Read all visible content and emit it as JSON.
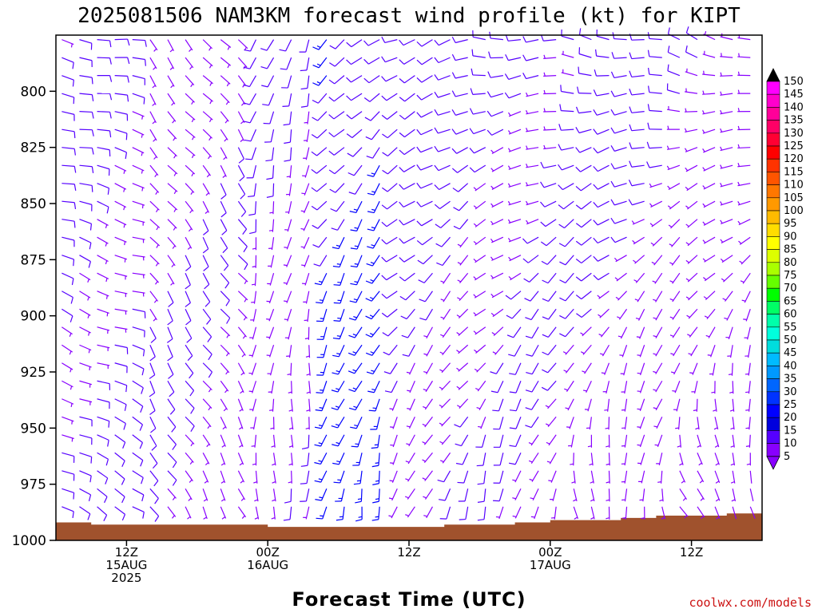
{
  "page": {
    "title": "2025081506 NAM3KM forecast wind profile (kt) for KIPT",
    "xlabel": "Forecast Time (UTC)",
    "credit": "coolwx.com/models"
  },
  "chart_data": {
    "type": "wind_barbs",
    "title": "2025081506 NAM3KM forecast wind profile (kt) for KIPT",
    "xlabel": "Forecast Time (UTC)",
    "ylabel": "",
    "y_axis": {
      "reversed": true,
      "range": [
        775,
        1000
      ],
      "ticks": [
        "800",
        "825",
        "850",
        "875",
        "900",
        "925",
        "950",
        "975",
        "1000"
      ]
    },
    "x_axis": {
      "range_hours": [
        0,
        60
      ],
      "ticks": [
        {
          "hour": 6,
          "line1": "12Z",
          "line2": "15AUG",
          "line3": "2025"
        },
        {
          "hour": 18,
          "line1": "00Z",
          "line2": "16AUG",
          "line3": ""
        },
        {
          "hour": 30,
          "line1": "12Z",
          "line2": "",
          "line3": ""
        },
        {
          "hour": 42,
          "line1": "00Z",
          "line2": "17AUG",
          "line3": ""
        },
        {
          "hour": 54,
          "line1": "12Z",
          "line2": "",
          "line3": ""
        }
      ]
    },
    "grid": false,
    "legend_placement": "right",
    "colorbar": {
      "labels": [
        "150",
        "145",
        "140",
        "135",
        "130",
        "125",
        "120",
        "115",
        "110",
        "105",
        "100",
        "95",
        "90",
        "85",
        "80",
        "75",
        "70",
        "65",
        "60",
        "55",
        "50",
        "45",
        "40",
        "35",
        "30",
        "25",
        "20",
        "15",
        "10",
        "5"
      ],
      "colors": [
        "#ff00ff",
        "#ff00cc",
        "#ff0099",
        "#ff0066",
        "#ff0033",
        "#ff0000",
        "#ff3300",
        "#ff5500",
        "#ff7700",
        "#ff9900",
        "#ffbb00",
        "#ffdd00",
        "#ffff00",
        "#ddff00",
        "#aaff00",
        "#66ff00",
        "#00ff00",
        "#00ff66",
        "#00ffaa",
        "#00ffdd",
        "#00dddd",
        "#00bbff",
        "#0099ff",
        "#0066ff",
        "#0033ff",
        "#0000ff",
        "#0000dd",
        "#5500ff",
        "#8800ff"
      ],
      "top_color": "#000000",
      "bottom_color": "#8800ff"
    },
    "terrain_color": "#a0522d",
    "surface_pressure_series": [
      {
        "hour": 0,
        "p": 992
      },
      {
        "hour": 3,
        "p": 993
      },
      {
        "hour": 6,
        "p": 993
      },
      {
        "hour": 9,
        "p": 993
      },
      {
        "hour": 12,
        "p": 993
      },
      {
        "hour": 15,
        "p": 993
      },
      {
        "hour": 18,
        "p": 994
      },
      {
        "hour": 21,
        "p": 994
      },
      {
        "hour": 24,
        "p": 994
      },
      {
        "hour": 27,
        "p": 994
      },
      {
        "hour": 30,
        "p": 994
      },
      {
        "hour": 33,
        "p": 993
      },
      {
        "hour": 36,
        "p": 993
      },
      {
        "hour": 39,
        "p": 992
      },
      {
        "hour": 42,
        "p": 991
      },
      {
        "hour": 45,
        "p": 991
      },
      {
        "hour": 48,
        "p": 990
      },
      {
        "hour": 51,
        "p": 989
      },
      {
        "hour": 54,
        "p": 989
      },
      {
        "hour": 57,
        "p": 988
      },
      {
        "hour": 60,
        "p": 987
      }
    ],
    "wind_regimes": [
      {
        "hours": [
          0,
          8
        ],
        "low": {
          "dir": 120,
          "spd": 12
        },
        "high": {
          "dir": 100,
          "spd": 10
        }
      },
      {
        "hours": [
          8,
          16
        ],
        "low": {
          "dir": 150,
          "spd": 10
        },
        "high": {
          "dir": 140,
          "spd": 8
        }
      },
      {
        "hours": [
          16,
          22
        ],
        "low": {
          "dir": 180,
          "spd": 8
        },
        "high": {
          "dir": 200,
          "spd": 10
        }
      },
      {
        "hours": [
          22,
          28
        ],
        "low": {
          "dir": 190,
          "spd": 18
        },
        "high": {
          "dir": 230,
          "spd": 15
        }
      },
      {
        "hours": [
          28,
          36
        ],
        "low": {
          "dir": 200,
          "spd": 10
        },
        "high": {
          "dir": 250,
          "spd": 12
        }
      },
      {
        "hours": [
          36,
          44
        ],
        "low": {
          "dir": 190,
          "spd": 8
        },
        "high": {
          "dir": 270,
          "spd": 12
        }
      },
      {
        "hours": [
          44,
          52
        ],
        "low": {
          "dir": 170,
          "spd": 7
        },
        "high": {
          "dir": 280,
          "spd": 12
        }
      },
      {
        "hours": [
          52,
          60
        ],
        "low": {
          "dir": 150,
          "spd": 6
        },
        "high": {
          "dir": 290,
          "spd": 10
        }
      }
    ]
  }
}
